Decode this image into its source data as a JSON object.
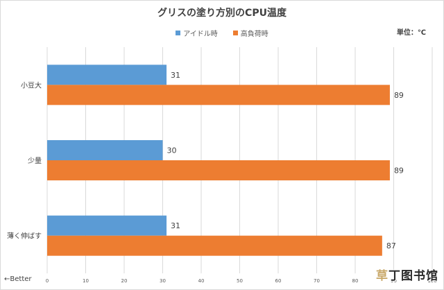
{
  "chart_data": {
    "type": "bar",
    "orientation": "horizontal",
    "title": "グリスの塗り方別のCPU温度",
    "unit_label": "単位：℃",
    "categories": [
      "小豆大",
      "少量",
      "薄く伸ばす"
    ],
    "series": [
      {
        "name": "アイドル時",
        "values": [
          31,
          30,
          31
        ],
        "color": "#5b9bd5"
      },
      {
        "name": "高負荷時",
        "values": [
          89,
          89,
          87
        ],
        "color": "#ed7d31"
      }
    ],
    "xlim": [
      0,
      100
    ],
    "x_ticks": [
      0,
      10,
      20,
      30,
      40,
      50,
      60,
      70,
      80,
      90,
      100
    ],
    "grid": true,
    "legend_position": "top",
    "annotation": "←Better"
  },
  "watermark": {
    "first": "草",
    "rest": "丁图书馆"
  }
}
